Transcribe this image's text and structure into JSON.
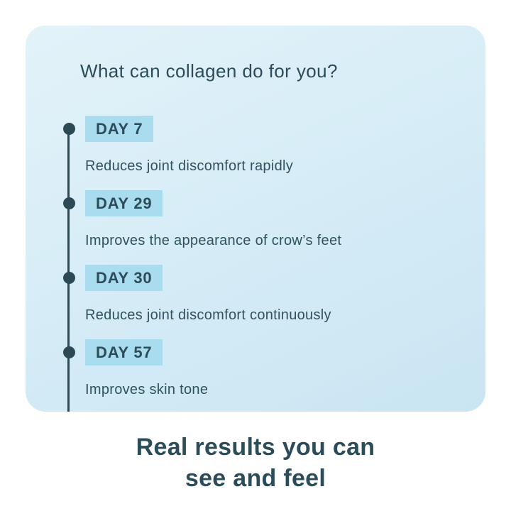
{
  "colors": {
    "page_background": "#ffffff",
    "card_background_top": "#e3f2f9",
    "card_background_bottom": "#c9e5f2",
    "badge_background": "#a9dcee",
    "dark_teal_text": "#2b4c58",
    "body_text": "#30525e",
    "timeline_dot": "#2b4a56"
  },
  "card": {
    "title": "What can collagen do for you?",
    "timeline": {
      "items": [
        {
          "day": "DAY 7",
          "description": "Reduces joint discomfort rapidly"
        },
        {
          "day": "DAY 29",
          "description": "Improves the appearance of crow’s feet"
        },
        {
          "day": "DAY 30",
          "description": "Reduces joint discomfort continuously"
        },
        {
          "day": "DAY 57",
          "description": "Improves skin tone"
        }
      ]
    }
  },
  "footer": {
    "heading_lines": [
      "Real results you can",
      "see and feel"
    ]
  }
}
